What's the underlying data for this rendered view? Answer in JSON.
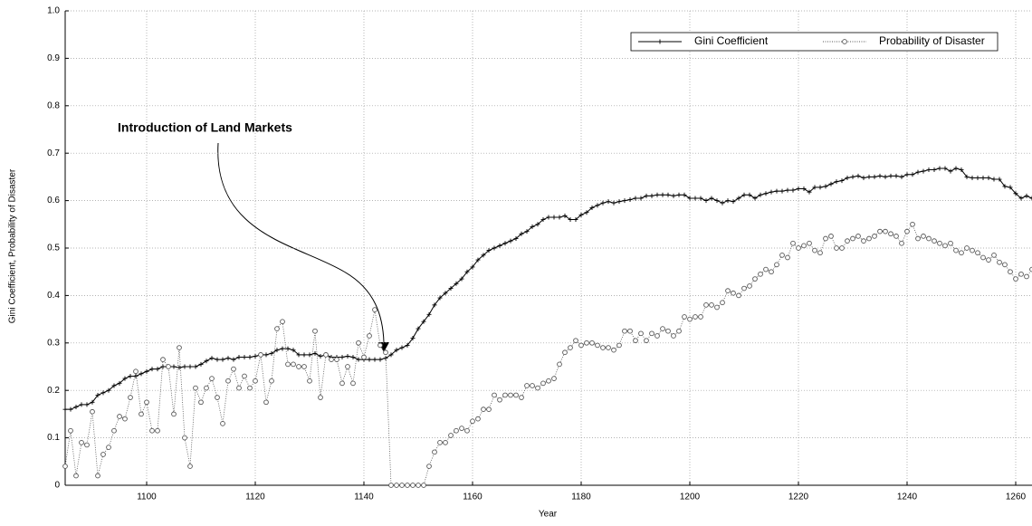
{
  "chart_data": {
    "type": "line",
    "x_label": "Year",
    "y_label": "Gini Coefficient, Probability of Disaster",
    "annotation": "Introduction of Land Markets",
    "xlim": [
      1085,
      1263
    ],
    "ylim": [
      0,
      1
    ],
    "xticks": [
      1100,
      1120,
      1140,
      1160,
      1180,
      1200,
      1220,
      1240,
      1260
    ],
    "yticks": [
      0,
      0.1,
      0.2,
      0.3,
      0.4,
      0.5,
      0.6,
      0.7,
      0.8,
      0.9,
      {
        "value": 1,
        "label": "1.0"
      }
    ],
    "grid": true,
    "legend": "top-right",
    "x": [
      1085,
      1086,
      1087,
      1088,
      1089,
      1090,
      1091,
      1092,
      1093,
      1094,
      1095,
      1096,
      1097,
      1098,
      1099,
      1100,
      1101,
      1102,
      1103,
      1104,
      1105,
      1106,
      1107,
      1108,
      1109,
      1110,
      1111,
      1112,
      1113,
      1114,
      1115,
      1116,
      1117,
      1118,
      1119,
      1120,
      1121,
      1122,
      1123,
      1124,
      1125,
      1126,
      1127,
      1128,
      1129,
      1130,
      1131,
      1132,
      1133,
      1134,
      1135,
      1136,
      1137,
      1138,
      1139,
      1140,
      1141,
      1142,
      1143,
      1144,
      1145,
      1146,
      1147,
      1148,
      1149,
      1150,
      1151,
      1152,
      1153,
      1154,
      1155,
      1156,
      1157,
      1158,
      1159,
      1160,
      1161,
      1162,
      1163,
      1164,
      1165,
      1166,
      1167,
      1168,
      1169,
      1170,
      1171,
      1172,
      1173,
      1174,
      1175,
      1176,
      1177,
      1178,
      1179,
      1180,
      1181,
      1182,
      1183,
      1184,
      1185,
      1186,
      1187,
      1188,
      1189,
      1190,
      1191,
      1192,
      1193,
      1194,
      1195,
      1196,
      1197,
      1198,
      1199,
      1200,
      1201,
      1202,
      1203,
      1204,
      1205,
      1206,
      1207,
      1208,
      1209,
      1210,
      1211,
      1212,
      1213,
      1214,
      1215,
      1216,
      1217,
      1218,
      1219,
      1220,
      1221,
      1222,
      1223,
      1224,
      1225,
      1226,
      1227,
      1228,
      1229,
      1230,
      1231,
      1232,
      1233,
      1234,
      1235,
      1236,
      1237,
      1238,
      1239,
      1240,
      1241,
      1242,
      1243,
      1244,
      1245,
      1246,
      1247,
      1248,
      1249,
      1250,
      1251,
      1252,
      1253,
      1254,
      1255,
      1256,
      1257,
      1258,
      1259,
      1260,
      1261,
      1262,
      1263
    ],
    "series": [
      {
        "name": "Gini Coefficient",
        "color": "#000000",
        "marker": "plus",
        "line_style": "solid",
        "values": [
          0.16,
          0.16,
          0.165,
          0.17,
          0.17,
          0.175,
          0.19,
          0.195,
          0.2,
          0.21,
          0.215,
          0.225,
          0.23,
          0.23,
          0.235,
          0.24,
          0.245,
          0.245,
          0.25,
          0.25,
          0.25,
          0.248,
          0.25,
          0.25,
          0.25,
          0.255,
          0.262,
          0.268,
          0.265,
          0.265,
          0.268,
          0.265,
          0.27,
          0.27,
          0.27,
          0.272,
          0.275,
          0.275,
          0.278,
          0.285,
          0.288,
          0.288,
          0.285,
          0.275,
          0.275,
          0.275,
          0.278,
          0.272,
          0.275,
          0.27,
          0.27,
          0.27,
          0.272,
          0.27,
          0.265,
          0.265,
          0.265,
          0.265,
          0.265,
          0.268,
          0.275,
          0.285,
          0.29,
          0.295,
          0.31,
          0.33,
          0.345,
          0.36,
          0.38,
          0.395,
          0.405,
          0.415,
          0.425,
          0.435,
          0.45,
          0.46,
          0.475,
          0.485,
          0.495,
          0.5,
          0.505,
          0.51,
          0.515,
          0.52,
          0.53,
          0.535,
          0.545,
          0.55,
          0.56,
          0.565,
          0.565,
          0.565,
          0.568,
          0.56,
          0.56,
          0.57,
          0.575,
          0.585,
          0.59,
          0.595,
          0.598,
          0.595,
          0.598,
          0.6,
          0.602,
          0.605,
          0.605,
          0.61,
          0.61,
          0.612,
          0.612,
          0.612,
          0.61,
          0.612,
          0.612,
          0.605,
          0.605,
          0.605,
          0.6,
          0.605,
          0.6,
          0.595,
          0.6,
          0.598,
          0.605,
          0.612,
          0.612,
          0.605,
          0.612,
          0.615,
          0.618,
          0.62,
          0.62,
          0.622,
          0.622,
          0.625,
          0.625,
          0.618,
          0.628,
          0.628,
          0.63,
          0.635,
          0.64,
          0.642,
          0.648,
          0.65,
          0.652,
          0.648,
          0.65,
          0.65,
          0.652,
          0.65,
          0.652,
          0.652,
          0.65,
          0.655,
          0.655,
          0.66,
          0.662,
          0.665,
          0.665,
          0.668,
          0.668,
          0.662,
          0.668,
          0.665,
          0.65,
          0.648,
          0.648,
          0.648,
          0.648,
          0.645,
          0.645,
          0.63,
          0.628,
          0.615,
          0.605,
          0.61,
          0.605
        ]
      },
      {
        "name": "Probability of Disaster",
        "color": "#555555",
        "marker": "circle",
        "line_style": "dotted",
        "values": [
          0.04,
          0.115,
          0.02,
          0.09,
          0.085,
          0.155,
          0.02,
          0.065,
          0.08,
          0.115,
          0.145,
          0.14,
          0.185,
          0.24,
          0.15,
          0.175,
          0.115,
          0.115,
          0.265,
          0.25,
          0.15,
          0.29,
          0.1,
          0.04,
          0.205,
          0.175,
          0.205,
          0.225,
          0.185,
          0.13,
          0.22,
          0.245,
          0.205,
          0.23,
          0.205,
          0.22,
          0.275,
          0.175,
          0.22,
          0.33,
          0.345,
          0.255,
          0.255,
          0.25,
          0.25,
          0.22,
          0.325,
          0.185,
          0.275,
          0.265,
          0.265,
          0.215,
          0.25,
          0.215,
          0.3,
          0.27,
          0.315,
          0.37,
          0.295,
          0.28,
          0,
          0,
          0,
          0,
          0,
          0,
          0,
          0.04,
          0.07,
          0.09,
          0.09,
          0.105,
          0.115,
          0.12,
          0.115,
          0.135,
          0.14,
          0.16,
          0.16,
          0.19,
          0.18,
          0.19,
          0.19,
          0.19,
          0.185,
          0.21,
          0.21,
          0.205,
          0.215,
          0.22,
          0.225,
          0.255,
          0.28,
          0.29,
          0.305,
          0.295,
          0.3,
          0.3,
          0.295,
          0.29,
          0.29,
          0.285,
          0.295,
          0.325,
          0.325,
          0.305,
          0.32,
          0.305,
          0.32,
          0.315,
          0.33,
          0.325,
          0.315,
          0.325,
          0.355,
          0.35,
          0.355,
          0.355,
          0.38,
          0.38,
          0.375,
          0.385,
          0.41,
          0.405,
          0.4,
          0.415,
          0.42,
          0.435,
          0.445,
          0.455,
          0.45,
          0.465,
          0.485,
          0.48,
          0.51,
          0.5,
          0.505,
          0.51,
          0.495,
          0.49,
          0.52,
          0.525,
          0.5,
          0.5,
          0.515,
          0.52,
          0.525,
          0.515,
          0.52,
          0.525,
          0.535,
          0.535,
          0.53,
          0.525,
          0.51,
          0.535,
          0.55,
          0.52,
          0.525,
          0.52,
          0.515,
          0.51,
          0.505,
          0.51,
          0.495,
          0.49,
          0.5,
          0.495,
          0.49,
          0.48,
          0.475,
          0.485,
          0.47,
          0.465,
          0.45,
          0.435,
          0.445,
          0.44,
          0.455
        ]
      }
    ]
  }
}
